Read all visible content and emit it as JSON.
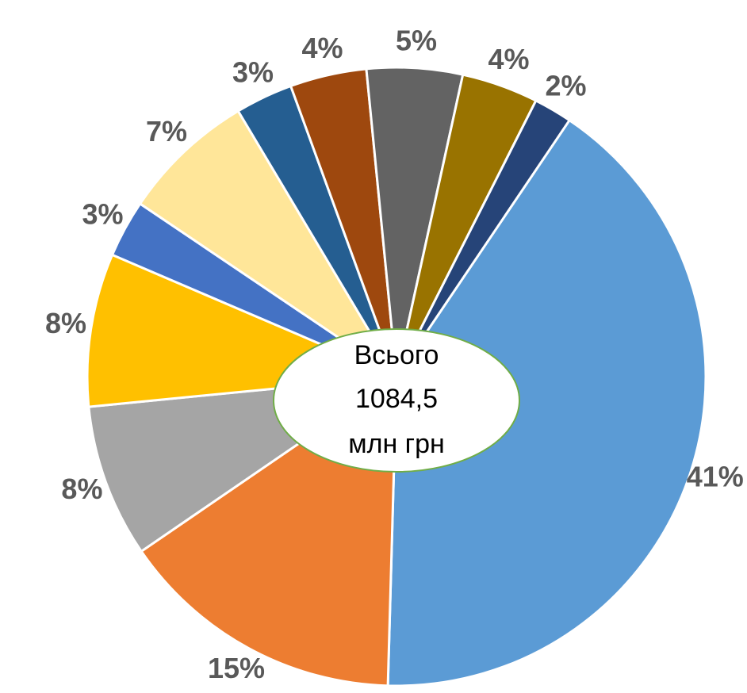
{
  "chart_data": {
    "type": "pie",
    "values": [
      41,
      15,
      8,
      8,
      3,
      7,
      3,
      4,
      5,
      4,
      2
    ],
    "value_labels": [
      "41%",
      "15%",
      "8%",
      "8%",
      "3%",
      "7%",
      "3%",
      "4%",
      "5%",
      "4%",
      "2%"
    ],
    "colors": [
      "#5b9bd5",
      "#ed7d31",
      "#a5a5a5",
      "#ffc000",
      "#4472c4",
      "#ffe699",
      "#255e91",
      "#9e480e",
      "#636363",
      "#997300",
      "#264478"
    ],
    "center_label": [
      "Всього",
      "1084,5",
      "млн грн"
    ]
  }
}
